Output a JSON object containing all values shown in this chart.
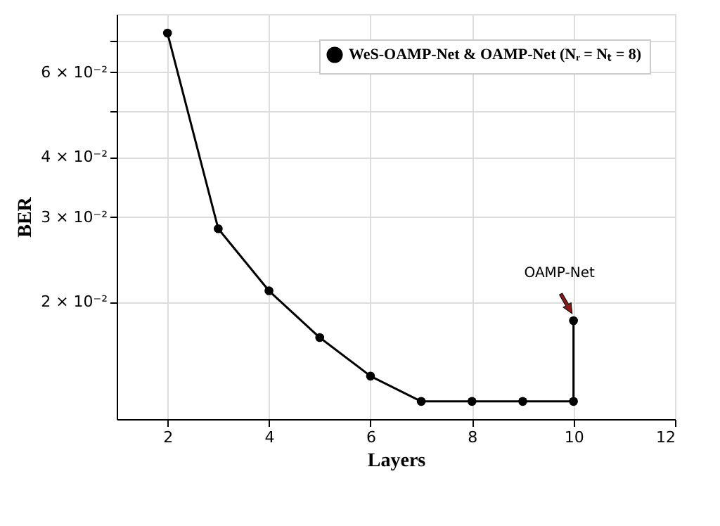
{
  "chart_data": {
    "type": "line",
    "xlabel": "Layers",
    "ylabel": "BER",
    "log": "y",
    "x": [
      2,
      3,
      4,
      5,
      6,
      7,
      8,
      9,
      10,
      10
    ],
    "series": [
      {
        "name": "WeS-OAMP-Net & OAMP-Net (Nᵣ = Nₜ = 8)",
        "color": "#000000",
        "values": [
          0.0724,
          0.0284,
          0.0211,
          0.01687,
          0.01403,
          0.01243,
          0.01243,
          0.01243,
          0.01243,
          0.01829
        ]
      }
    ],
    "xlim": [
      1,
      12
    ],
    "xticks": [
      2,
      4,
      6,
      8,
      10,
      12
    ],
    "ylim": [
      0.01142,
      0.0793
    ],
    "yticks": [
      {
        "value": 0.02,
        "label": "2 × 10⁻²"
      },
      {
        "value": 0.03,
        "label": "3 × 10⁻²"
      },
      {
        "value": 0.04,
        "label": "4 × 10⁻²"
      },
      {
        "value": 0.05,
        "label": null
      },
      {
        "value": 0.06,
        "label": "6 × 10⁻²"
      },
      {
        "value": 0.07,
        "label": null
      }
    ],
    "annotations": [
      {
        "text": "OAMP-Net",
        "x": 10,
        "y": 0.01829
      }
    ],
    "grid": true,
    "legend": "top right",
    "marker": "circle",
    "line_style": "solid"
  }
}
